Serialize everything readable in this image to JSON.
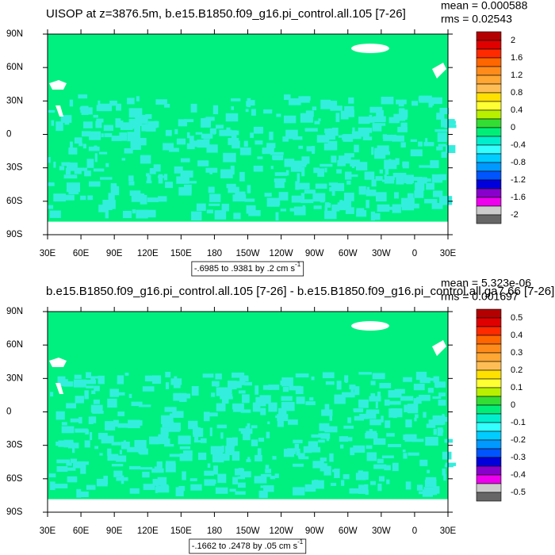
{
  "panels": [
    {
      "title": "UISOP at z=3876.5m, b.e15.B1850.f09_g16.pi_control.all.105 [7-26]",
      "mean": "mean = 0.000588",
      "rms": "rms = 0.02543",
      "lat_labels": [
        "90N",
        "60N",
        "30N",
        "0",
        "30S",
        "60S",
        "90S"
      ],
      "lon_labels": [
        "30E",
        "60E",
        "90E",
        "120E",
        "150E",
        "180",
        "150W",
        "120W",
        "90W",
        "60W",
        "30W",
        "0",
        "30E"
      ],
      "colorbar_labels": [
        "2",
        "1.6",
        "1.2",
        "0.8",
        "0.4",
        "0",
        "-0.4",
        "-0.8",
        "-1.2",
        "-1.6",
        "-2"
      ],
      "range": "-.6985 to .9381 by .2 cm s",
      "range_sup": "-1"
    },
    {
      "title": "b.e15.B1850.f09_g16.pi_control.all.105 [7-26] - b.e15.B1850.f09_g16.pi_control.all.ga7.66 [7-26]",
      "mean": "mean = 5.323e-06",
      "rms": "rms = 0.001697",
      "lat_labels": [
        "90N",
        "60N",
        "30N",
        "0",
        "30S",
        "60S",
        "90S"
      ],
      "lon_labels": [
        "30E",
        "60E",
        "90E",
        "120E",
        "150E",
        "180",
        "150W",
        "120W",
        "90W",
        "60W",
        "30W",
        "0",
        "30E"
      ],
      "colorbar_labels": [
        "0.5",
        "0.4",
        "0.3",
        "0.2",
        "0.1",
        "0",
        "-0.1",
        "-0.2",
        "-0.3",
        "-0.4",
        "-0.5"
      ],
      "range": "-.1662 to .2478 by .05 cm s",
      "range_sup": "-1"
    }
  ],
  "colorbar_colors": [
    "#b40000",
    "#e00000",
    "#ff2a00",
    "#ff6600",
    "#ff8c1a",
    "#ffa633",
    "#ffbe55",
    "#ffe000",
    "#ffff33",
    "#b8f000",
    "#33dd33",
    "#00ee77",
    "#00eecc",
    "#33ffff",
    "#00ccff",
    "#0099ff",
    "#0055ff",
    "#0000dd",
    "#8800cc",
    "#ee00ee",
    "#cccccc",
    "#666666"
  ]
}
